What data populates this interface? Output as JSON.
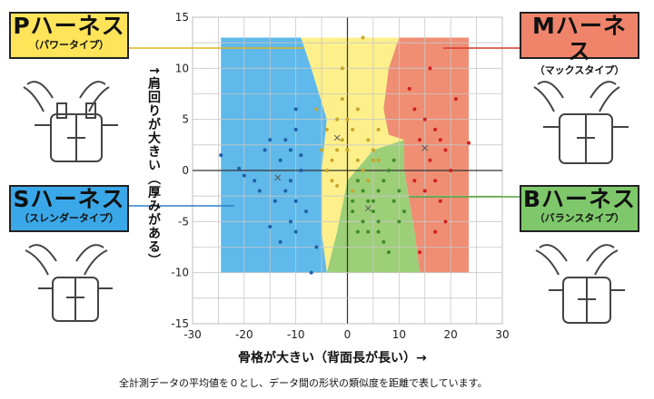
{
  "labels": {
    "p": {
      "name": "Pハーネス",
      "sub": "（パワータイプ）",
      "color": "#ffe45a"
    },
    "m": {
      "name": "Mハーネス",
      "sub": "（マックスタイプ）",
      "color": "#ef846a"
    },
    "s": {
      "name": "Sハーネス",
      "sub": "（スレンダータイプ）",
      "color": "#3aa8e8"
    },
    "b": {
      "name": "Bハーネス",
      "sub": "（バランスタイプ）",
      "color": "#7ec86b"
    }
  },
  "y_axis_label": "↑肩回りが大きい（厚みがある）",
  "x_axis_label": "骨格が大きい（背面長が長い）→",
  "footnote": "全計測データの平均値を０とし、データ間の形状の類似度を距離で表しています。",
  "chart_data": {
    "type": "scatter",
    "xlim": [
      -30,
      30
    ],
    "ylim": [
      -15,
      15
    ],
    "xticks": [
      -30,
      -20,
      -10,
      0,
      10,
      20,
      30
    ],
    "yticks": [
      -15,
      -10,
      -5,
      0,
      5,
      10,
      15
    ],
    "grid": true,
    "regions": [
      {
        "name": "Pハーネス",
        "color": "#fdf08a"
      },
      {
        "name": "Sハーネス",
        "color": "#5fb9ea"
      },
      {
        "name": "Mハーネス",
        "color": "#ef8e73"
      },
      {
        "name": "Bハーネス",
        "color": "#9ccf78"
      }
    ],
    "series": [
      {
        "name": "Sハーネス",
        "color": "#1e5fa8",
        "points": [
          [
            -24.5,
            1.5
          ],
          [
            -21,
            0.2
          ],
          [
            -20,
            -0.5
          ],
          [
            -17,
            -2
          ],
          [
            -16,
            2
          ],
          [
            -15,
            3
          ],
          [
            -13,
            1
          ],
          [
            -12,
            3
          ],
          [
            -11,
            2
          ],
          [
            -10,
            4
          ],
          [
            -11,
            -1
          ],
          [
            -12,
            -2
          ],
          [
            -10,
            -3
          ],
          [
            -9,
            0
          ],
          [
            -15,
            -5.5
          ],
          [
            -11,
            -5
          ],
          [
            -10,
            -6
          ],
          [
            -13,
            -7
          ],
          [
            -8,
            -4
          ],
          [
            -7,
            -10
          ],
          [
            -10,
            6
          ],
          [
            -18,
            -1
          ],
          [
            -14,
            -3
          ],
          [
            -9,
            1.5
          ],
          [
            -6,
            -7.5
          ]
        ],
        "centroid": [
          -13.5,
          -0.7
        ]
      },
      {
        "name": "Pハーネス",
        "color": "#c8a52a",
        "points": [
          [
            -1,
            10
          ],
          [
            3,
            13
          ],
          [
            -2,
            5
          ],
          [
            -3,
            1
          ],
          [
            0,
            2
          ],
          [
            -1,
            3
          ],
          [
            1,
            4
          ],
          [
            2,
            1
          ],
          [
            -4,
            0
          ],
          [
            -3,
            -1
          ],
          [
            4,
            3
          ],
          [
            5,
            2
          ],
          [
            2,
            -1
          ],
          [
            -2,
            -1.5
          ],
          [
            -5,
            2
          ],
          [
            3,
            0
          ],
          [
            4,
            -1
          ],
          [
            6,
            1
          ],
          [
            1,
            -2
          ],
          [
            0,
            5
          ],
          [
            -6,
            6
          ],
          [
            6,
            4
          ],
          [
            -1,
            7
          ],
          [
            2,
            6
          ],
          [
            -4,
            4
          ],
          [
            5,
            1
          ],
          [
            -2,
            2
          ]
        ],
        "centroid": [
          -2,
          3.2
        ]
      },
      {
        "name": "Mハーネス",
        "color": "#d01f1f",
        "points": [
          [
            16,
            10
          ],
          [
            12,
            8
          ],
          [
            13,
            6
          ],
          [
            15,
            5
          ],
          [
            17,
            4
          ],
          [
            18,
            3
          ],
          [
            14,
            3
          ],
          [
            16,
            1
          ],
          [
            19,
            2
          ],
          [
            20,
            0
          ],
          [
            17,
            -1
          ],
          [
            15,
            -2
          ],
          [
            18,
            -3
          ],
          [
            19,
            -5
          ],
          [
            23.5,
            2.7
          ],
          [
            13,
            -1
          ],
          [
            17,
            -6
          ],
          [
            14,
            -8
          ],
          [
            21,
            7
          ]
        ],
        "centroid": [
          15,
          2.2
        ]
      },
      {
        "name": "Bハーネス",
        "color": "#3f8b2a",
        "points": [
          [
            2,
            -1
          ],
          [
            3,
            -2
          ],
          [
            4,
            -3
          ],
          [
            5,
            -4
          ],
          [
            6,
            -2
          ],
          [
            7,
            -1
          ],
          [
            8,
            0
          ],
          [
            9,
            -3
          ],
          [
            10,
            -5
          ],
          [
            6,
            -6
          ],
          [
            3,
            -5
          ],
          [
            1,
            -4
          ],
          [
            2,
            -6
          ],
          [
            7,
            -7
          ],
          [
            8,
            -8
          ],
          [
            5,
            -3
          ],
          [
            4,
            -6
          ],
          [
            9,
            1
          ],
          [
            10,
            -2
          ],
          [
            1,
            -3
          ],
          [
            6,
            -5
          ],
          [
            11,
            -4
          ]
        ],
        "centroid": [
          4,
          -3.7
        ]
      }
    ]
  }
}
